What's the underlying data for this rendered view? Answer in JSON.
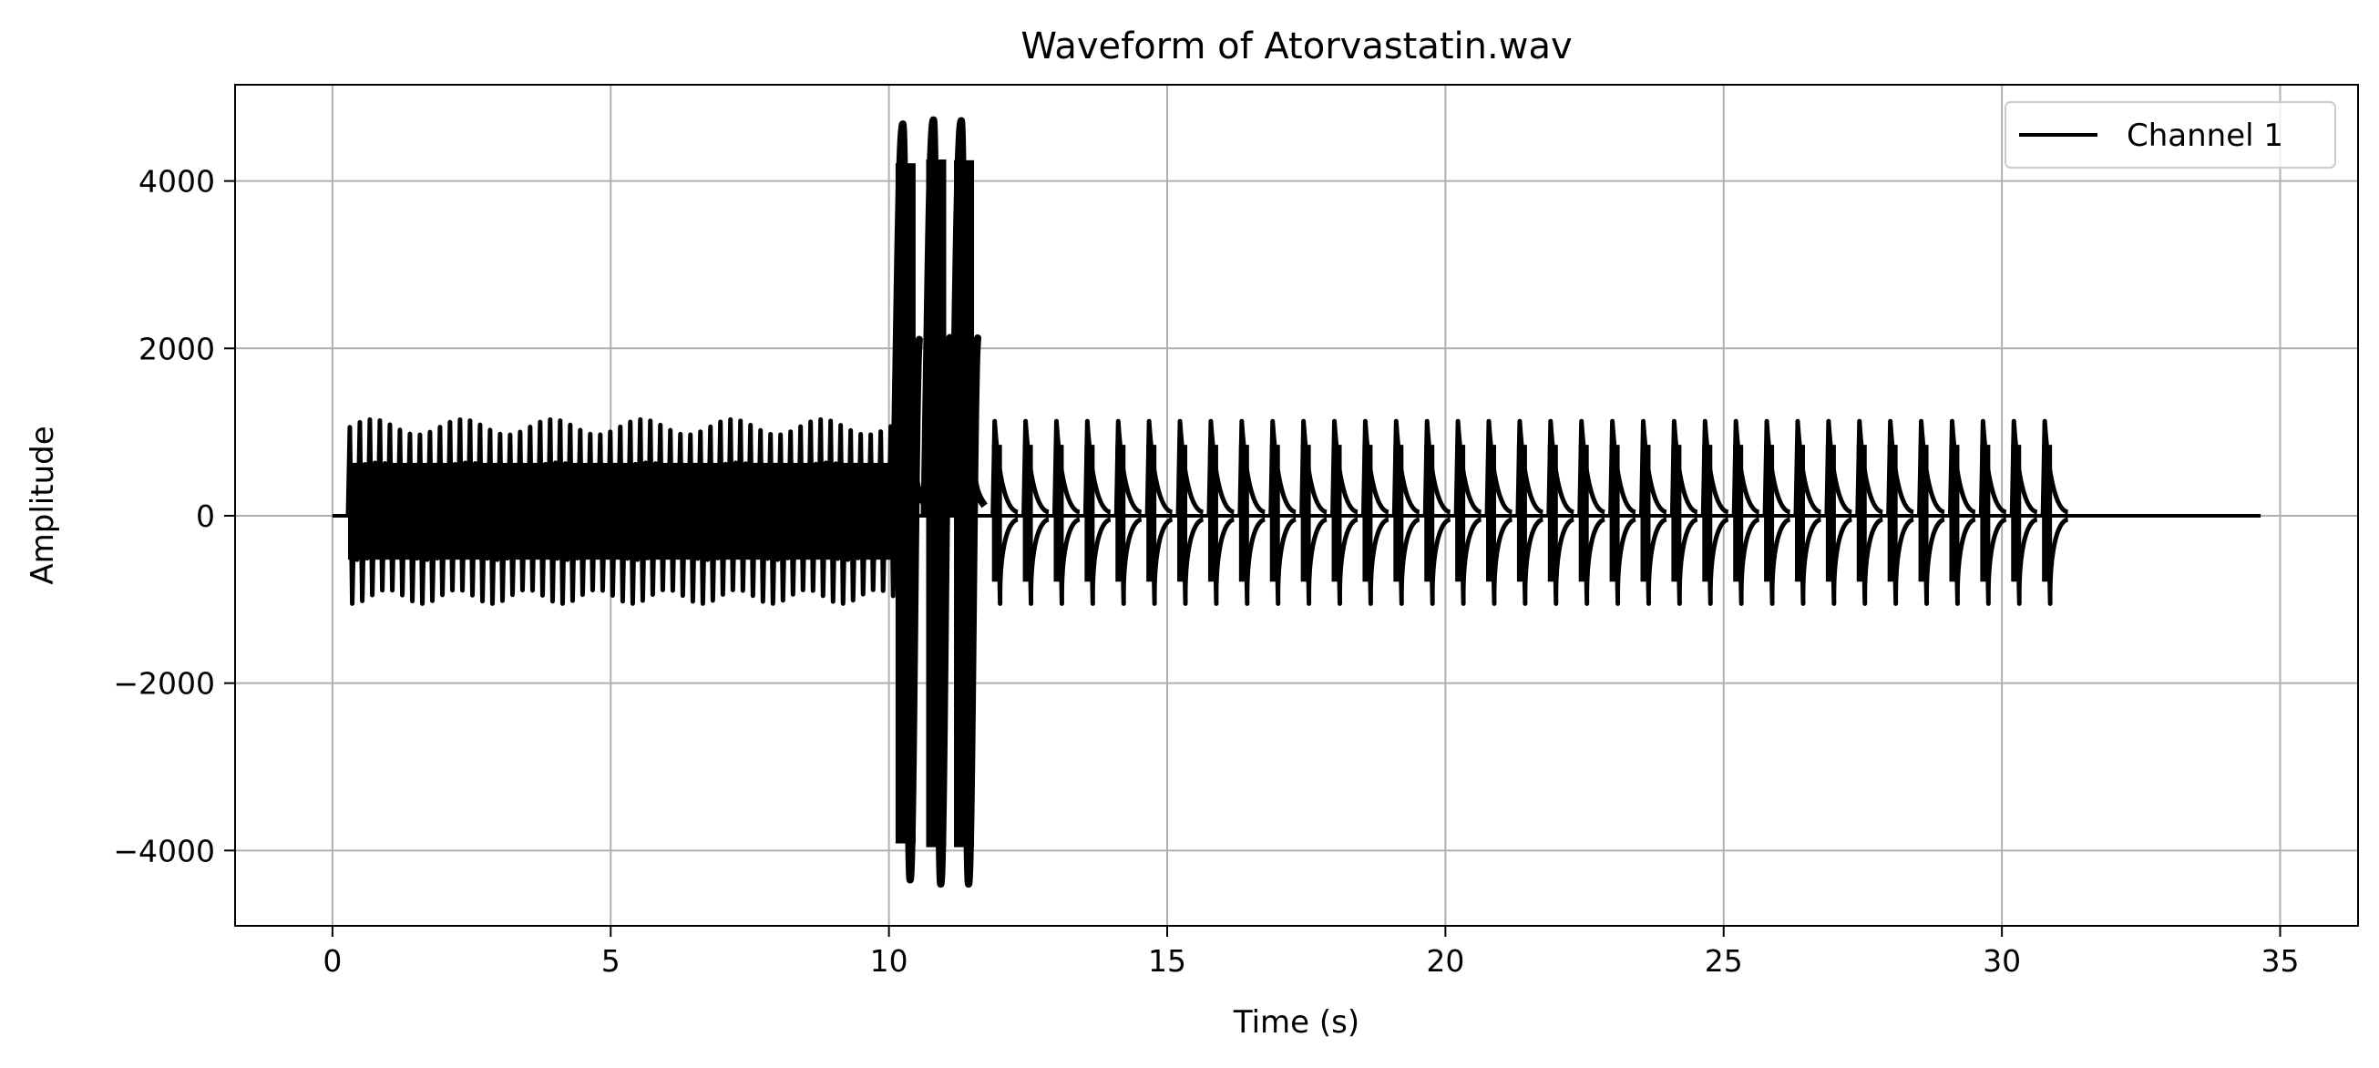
{
  "chart_data": {
    "type": "line",
    "title": "Waveform of Atorvastatin.wav",
    "xlabel": "Time (s)",
    "ylabel": "Amplitude",
    "xlim": [
      -1.75,
      36.4
    ],
    "ylim": [
      -4900,
      5150
    ],
    "xticks": [
      0,
      5,
      10,
      15,
      20,
      25,
      30,
      35
    ],
    "yticks": [
      -4000,
      -2000,
      0,
      2000,
      4000
    ],
    "xtick_labels": [
      "0",
      "5",
      "10",
      "15",
      "20",
      "25",
      "30",
      "35"
    ],
    "ytick_labels": [
      "−4000",
      "−2000",
      "0",
      "2000",
      "4000"
    ],
    "grid": true,
    "legend_position": "top-right",
    "series": [
      {
        "name": "Channel 1",
        "color": "#000000",
        "signal_start": 0.0,
        "signal_end": 34.65,
        "dense_section": {
          "start": 0.28,
          "end": 10.05,
          "pulse_period": 0.18,
          "amplitude_max": 1150,
          "amplitude_min": -1050
        },
        "large_pulses": [
          {
            "t": 10.25,
            "max": 4680,
            "min": -4350
          },
          {
            "t": 10.8,
            "max": 4730,
            "min": -4400
          },
          {
            "t": 11.3,
            "max": 4720,
            "min": -4400
          }
        ],
        "sparse_section": {
          "start": 11.9,
          "end": 31.15,
          "pulse_period": 0.555,
          "amplitude_max": 1130,
          "amplitude_min": -1050
        }
      }
    ]
  }
}
